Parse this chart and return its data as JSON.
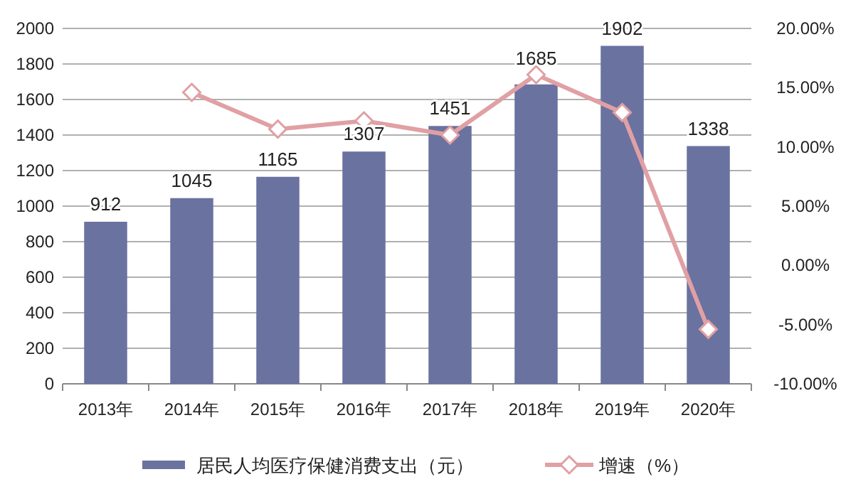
{
  "chart_data": {
    "type": "bar",
    "categories": [
      "2013年",
      "2014年",
      "2015年",
      "2016年",
      "2017年",
      "2018年",
      "2019年",
      "2020年"
    ],
    "series": [
      {
        "name": "居民人均医疗保健消费支出（元）",
        "color": "#6a72a0",
        "values": [
          912,
          1045,
          1165,
          1307,
          1451,
          1685,
          1902,
          1338
        ],
        "value_labels": [
          "912",
          "1045",
          "1165",
          "1307",
          "1451",
          "1685",
          "1902",
          "1338"
        ]
      },
      {
        "name": "增速（%）",
        "type": "line",
        "axis": "y2",
        "color": "#e0a0a4",
        "marker": "diamond",
        "values": [
          null,
          14.6,
          11.5,
          12.2,
          11.0,
          16.1,
          12.9,
          -5.4
        ]
      }
    ],
    "ylim": [
      0,
      2000
    ],
    "yticks": [
      0,
      200,
      400,
      600,
      800,
      1000,
      1200,
      1400,
      1600,
      1800,
      2000
    ],
    "y2lim": [
      -10,
      20
    ],
    "y2ticks": [
      {
        "value": -10,
        "label": "-10.00%"
      },
      {
        "value": -5,
        "label": "-5.00%"
      },
      {
        "value": 0,
        "label": "0.00%"
      },
      {
        "value": 5,
        "label": "5.00%"
      },
      {
        "value": 10,
        "label": "10.00%"
      },
      {
        "value": 15,
        "label": "15.00%"
      },
      {
        "value": 20,
        "label": "20.00%"
      }
    ],
    "grid": "y",
    "legend": "bottom"
  }
}
